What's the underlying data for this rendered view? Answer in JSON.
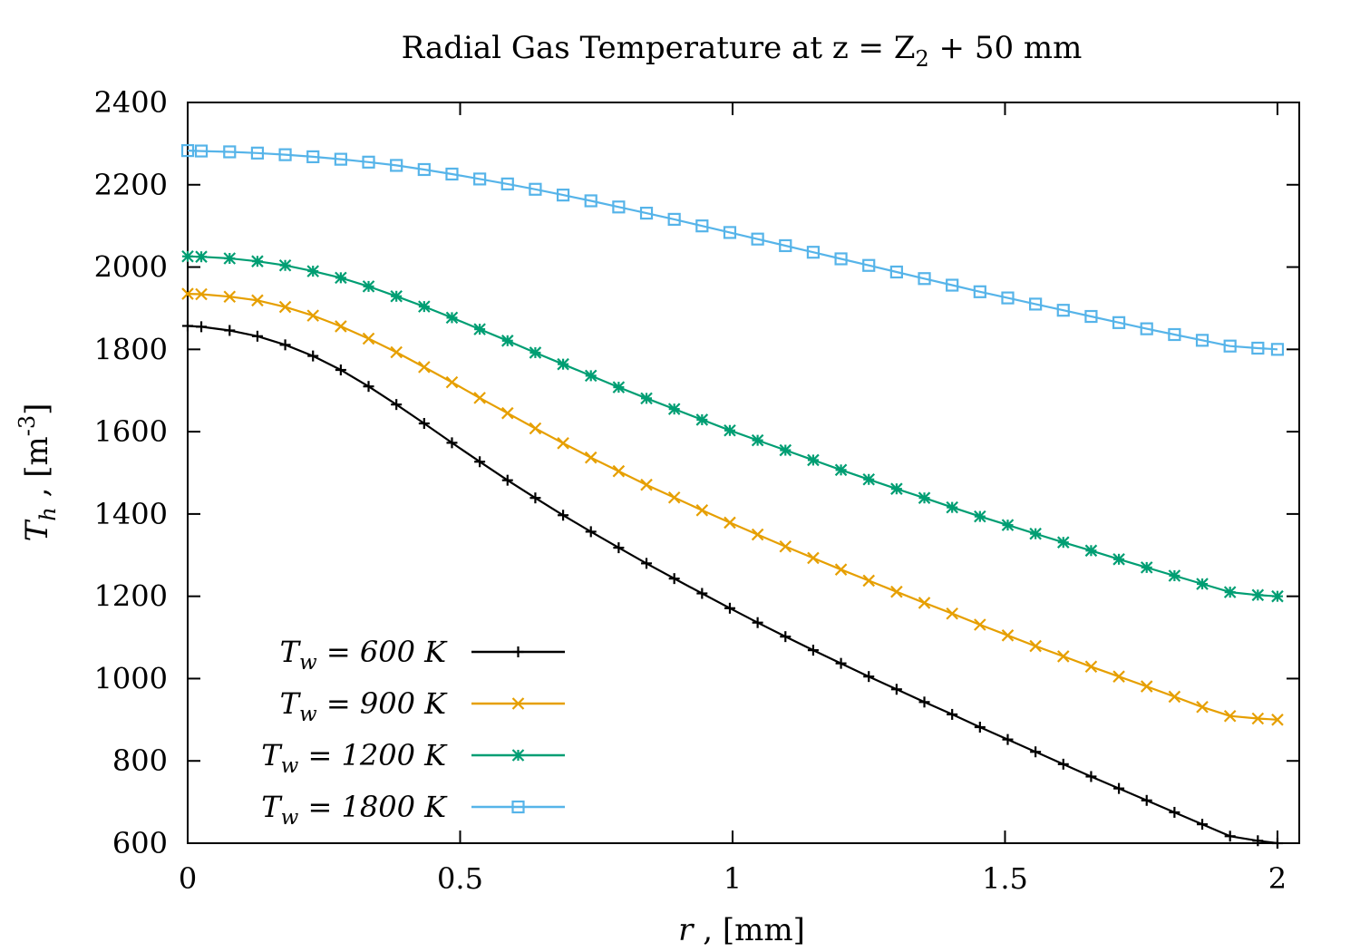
{
  "chart_data": {
    "type": "line",
    "title": "Radial Gas Temperature at z = Z",
    "title_sub": "2",
    "title_end": " + 50 mm",
    "xlabel": {
      "var": "r",
      "unit": " , [mm]"
    },
    "ylabel": {
      "var": "T",
      "sub": "h",
      "unit": " , [m",
      "sup": "-3",
      "close": "]"
    },
    "xlim": [
      0,
      2.04
    ],
    "ylim": [
      600,
      2400
    ],
    "xticks": [
      0,
      0.5,
      1,
      1.5,
      2
    ],
    "xtick_labels": [
      "0",
      "0.5",
      "1",
      "1.5",
      "2"
    ],
    "yticks": [
      600,
      800,
      1000,
      1200,
      1400,
      1600,
      1800,
      2000,
      2200,
      2400
    ],
    "ytick_labels": [
      "600",
      "800",
      "1000",
      "1200",
      "1400",
      "1600",
      "1800",
      "2000",
      "2200",
      "2400"
    ],
    "grid": false,
    "legend_position": "bottom-left",
    "x": [
      0,
      0.025,
      0.077,
      0.128,
      0.179,
      0.23,
      0.281,
      0.332,
      0.383,
      0.434,
      0.485,
      0.536,
      0.587,
      0.638,
      0.689,
      0.74,
      0.791,
      0.842,
      0.893,
      0.944,
      0.995,
      1.046,
      1.097,
      1.148,
      1.199,
      1.25,
      1.301,
      1.352,
      1.403,
      1.454,
      1.505,
      1.556,
      1.607,
      1.658,
      1.709,
      1.76,
      1.811,
      1.862,
      1.913,
      1.964,
      2.0
    ],
    "series": [
      {
        "name": "T_w = 600 K",
        "legend": {
          "var": "T",
          "sub": "w",
          "text": " = 600 K"
        },
        "color": "#000000",
        "marker": "plus",
        "values": [
          1857,
          1855,
          1846,
          1832,
          1811,
          1784,
          1750,
          1710,
          1666,
          1620,
          1573,
          1527,
          1482,
          1439,
          1397,
          1357,
          1318,
          1280,
          1243,
          1207,
          1171,
          1136,
          1102,
          1069,
          1037,
          1005,
          974,
          943,
          913,
          882,
          852,
          822,
          792,
          762,
          733,
          704,
          675,
          646,
          617,
          606,
          600
        ]
      },
      {
        "name": "T_w = 900 K",
        "legend": {
          "var": "T",
          "sub": "w",
          "text": " = 900 K"
        },
        "color": "#e69f00",
        "marker": "cross",
        "values": [
          1935,
          1934,
          1928,
          1919,
          1903,
          1882,
          1856,
          1826,
          1793,
          1757,
          1720,
          1682,
          1645,
          1608,
          1572,
          1537,
          1504,
          1471,
          1440,
          1409,
          1379,
          1350,
          1321,
          1293,
          1265,
          1238,
          1211,
          1184,
          1158,
          1131,
          1105,
          1079,
          1054,
          1029,
          1005,
          981,
          956,
          931,
          909,
          903,
          900
        ]
      },
      {
        "name": "T_w = 1200 K",
        "legend": {
          "var": "T",
          "sub": "w",
          "text": " = 1200 K"
        },
        "color": "#009e73",
        "marker": "star",
        "values": [
          2026,
          2025,
          2021,
          2014,
          2004,
          1990,
          1974,
          1953,
          1929,
          1904,
          1877,
          1849,
          1821,
          1792,
          1764,
          1736,
          1708,
          1681,
          1655,
          1629,
          1603,
          1579,
          1555,
          1531,
          1507,
          1484,
          1461,
          1439,
          1416,
          1394,
          1373,
          1352,
          1331,
          1311,
          1290,
          1270,
          1250,
          1230,
          1210,
          1203,
          1200
        ]
      },
      {
        "name": "T_w = 1800 K",
        "legend": {
          "var": "T",
          "sub": "w",
          "text": " = 1800 K"
        },
        "color": "#56b4e9",
        "marker": "square",
        "values": [
          2283,
          2282,
          2280,
          2277,
          2273,
          2268,
          2262,
          2255,
          2247,
          2237,
          2226,
          2214,
          2202,
          2189,
          2175,
          2161,
          2146,
          2131,
          2116,
          2100,
          2084,
          2068,
          2052,
          2036,
          2020,
          2004,
          1988,
          1972,
          1956,
          1940,
          1925,
          1910,
          1895,
          1880,
          1865,
          1850,
          1836,
          1822,
          1808,
          1803,
          1800
        ]
      }
    ]
  }
}
